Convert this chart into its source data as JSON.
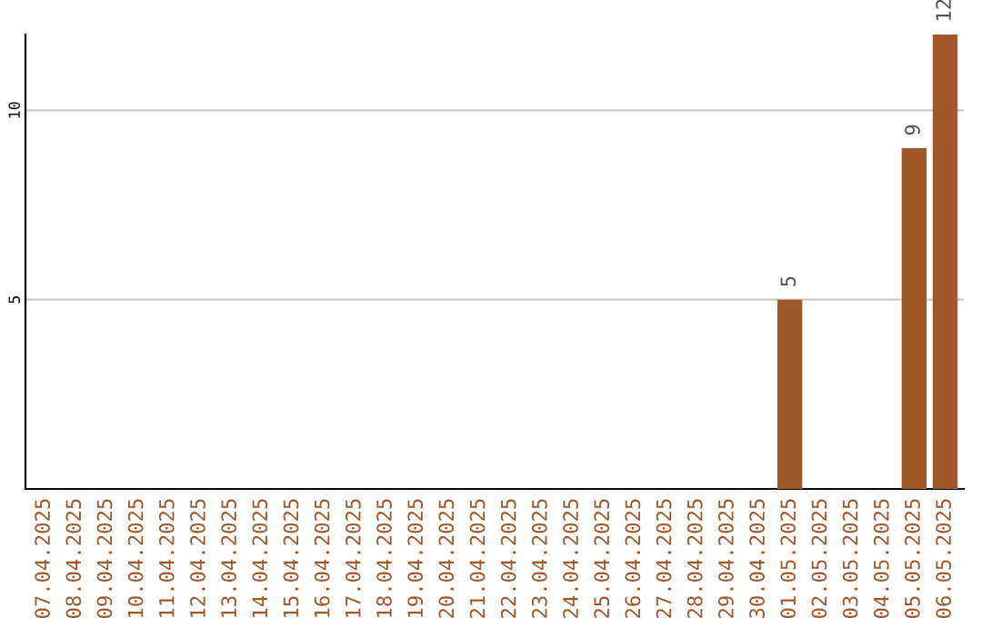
{
  "chart_data": {
    "type": "bar",
    "categories": [
      "07.04.2025",
      "08.04.2025",
      "09.04.2025",
      "10.04.2025",
      "11.04.2025",
      "12.04.2025",
      "13.04.2025",
      "14.04.2025",
      "15.04.2025",
      "16.04.2025",
      "17.04.2025",
      "18.04.2025",
      "19.04.2025",
      "20.04.2025",
      "21.04.2025",
      "22.04.2025",
      "23.04.2025",
      "24.04.2025",
      "25.04.2025",
      "26.04.2025",
      "27.04.2025",
      "28.04.2025",
      "29.04.2025",
      "30.04.2025",
      "01.05.2025",
      "02.05.2025",
      "03.05.2025",
      "04.05.2025",
      "05.05.2025",
      "06.05.2025"
    ],
    "values": [
      0,
      0,
      0,
      0,
      0,
      0,
      0,
      0,
      0,
      0,
      0,
      0,
      0,
      0,
      0,
      0,
      0,
      0,
      0,
      0,
      0,
      0,
      0,
      0,
      5,
      0,
      0,
      0,
      9,
      12
    ],
    "value_labels": [
      null,
      null,
      null,
      null,
      null,
      null,
      null,
      null,
      null,
      null,
      null,
      null,
      null,
      null,
      null,
      null,
      null,
      null,
      null,
      null,
      null,
      null,
      null,
      null,
      "5",
      null,
      null,
      null,
      "9",
      "12"
    ],
    "color": "#a0582a",
    "ylim": [
      0,
      12
    ],
    "yticks": [
      5,
      10
    ],
    "grid": "y"
  }
}
